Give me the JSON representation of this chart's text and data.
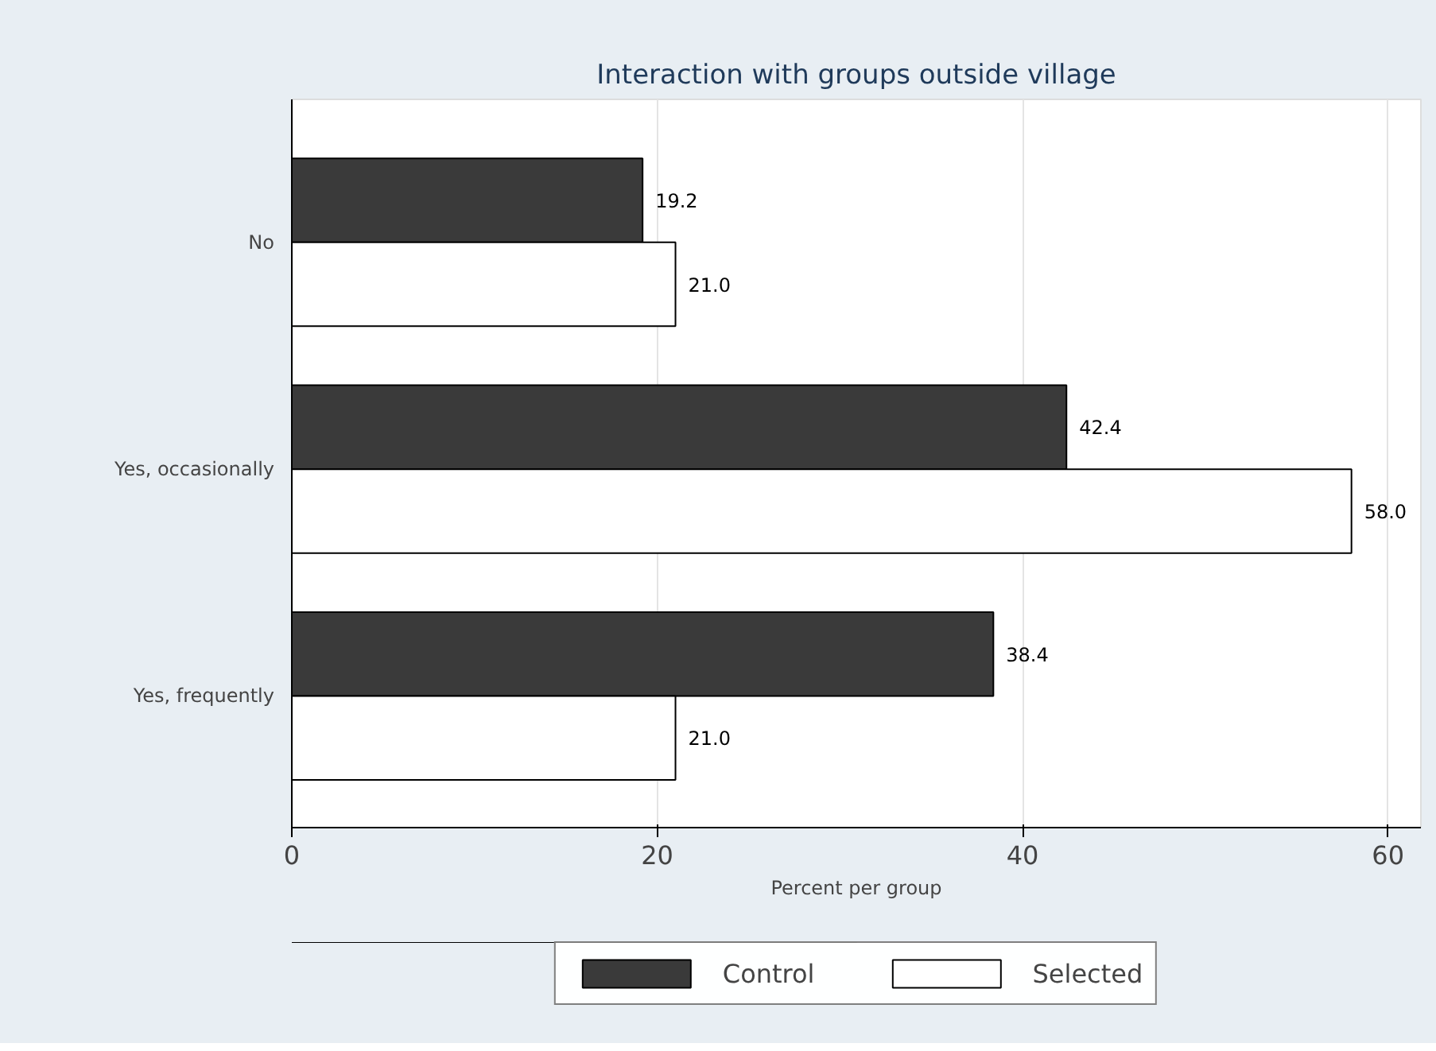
{
  "chart_data": {
    "type": "bar",
    "orientation": "horizontal",
    "title": "Interaction with groups outside village",
    "xlabel": "Percent per group",
    "categories": [
      "No",
      "Yes, occasionally",
      "Yes, frequently"
    ],
    "series": [
      {
        "name": "Control",
        "color": "#3a3a3a",
        "values": [
          19.2,
          42.4,
          38.4
        ],
        "value_labels": [
          "19.2",
          "42.4",
          "38.4"
        ]
      },
      {
        "name": "Selected",
        "color": "#ffffff",
        "values": [
          21.0,
          58.0,
          21.0
        ],
        "value_labels": [
          "21.0",
          "58.0",
          "21.0"
        ]
      }
    ],
    "xlim": [
      0,
      61.8
    ],
    "xticks": [
      0,
      20,
      40,
      60
    ],
    "grid": "x",
    "legend": "bottom",
    "data_labels": true
  }
}
